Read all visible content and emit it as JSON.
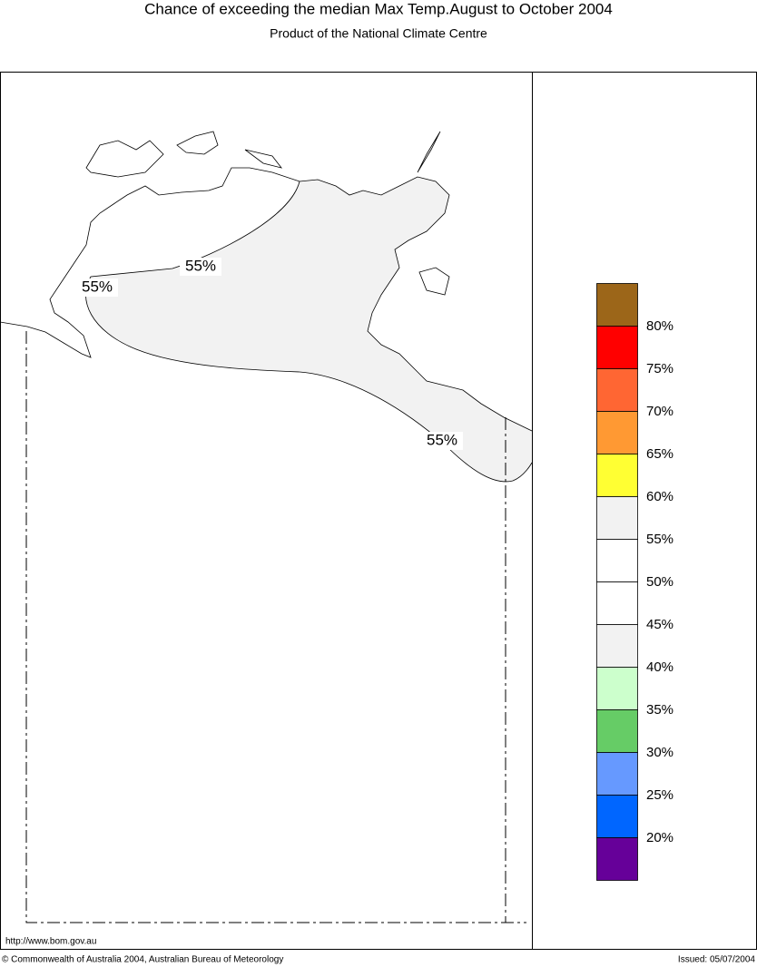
{
  "title": "Chance of exceeding the median Max Temp.August to October 2004",
  "subtitle": "Product of the National Climate Centre",
  "map": {
    "contour_labels": [
      "55%",
      "55%",
      "55%"
    ]
  },
  "legend": {
    "colors": [
      "#9c6619",
      "#ff0000",
      "#ff6633",
      "#ff9933",
      "#ffff33",
      "#f2f2f2",
      "#ffffff",
      "#ffffff",
      "#f2f2f2",
      "#ccffcc",
      "#66cc66",
      "#6699ff",
      "#0066ff",
      "#660099"
    ],
    "labels": [
      "80%",
      "75%",
      "70%",
      "65%",
      "60%",
      "55%",
      "50%",
      "45%",
      "40%",
      "35%",
      "30%",
      "25%",
      "20%"
    ]
  },
  "footer": {
    "url": "http://www.bom.gov.au",
    "copyright": "© Commonwealth of Australia 2004, Australian Bureau of Meteorology",
    "issued": "Issued: 05/07/2004"
  }
}
